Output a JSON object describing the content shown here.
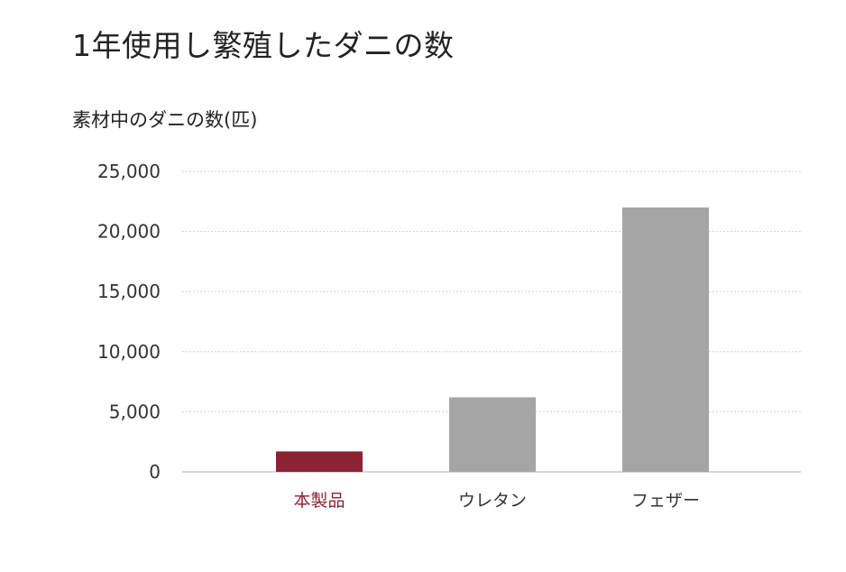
{
  "colors": {
    "highlight": "#8b2334",
    "default_bar": "#a5a5a5",
    "grid": "#d0d0d0",
    "text": "#222222"
  },
  "chart_data": {
    "type": "bar",
    "title": "1年使用し繁殖したダニの数",
    "ylabel": "素材中のダニの数(匹)",
    "xlabel": "",
    "categories": [
      "本製品",
      "ウレタン",
      "フェザー"
    ],
    "values": [
      1700,
      6200,
      22000
    ],
    "highlight_index": 0,
    "ylim": [
      0,
      25000
    ],
    "yticks": [
      0,
      5000,
      10000,
      15000,
      20000,
      25000
    ],
    "ytick_labels": [
      "0",
      "5,000",
      "10,000",
      "15,000",
      "20,000",
      "25,000"
    ],
    "grid": true,
    "legend": "none"
  }
}
